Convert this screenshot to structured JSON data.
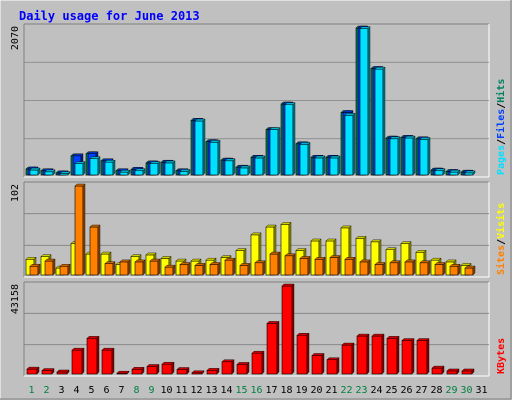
{
  "title": "Daily usage for June 2013",
  "colors": {
    "background": "#c0c0c0",
    "frame_dark": "#808080",
    "frame_light": "#ffffff",
    "title": "#0000ff",
    "axis_text": "#000000",
    "weekend": "#008040",
    "hits": "#00805c",
    "files": "#0040ff",
    "pages": "#00e0ff",
    "visits": "#ffff00",
    "sites": "#ff8000",
    "kbytes": "#ff0000",
    "gridline": "#808080"
  },
  "chart_data": [
    {
      "type": "bar",
      "panel": "top",
      "ymax_label": "2070",
      "ylim": [
        0,
        2070
      ],
      "legend": [
        {
          "name": "Hits",
          "color_key": "hits"
        },
        {
          "name": "Files",
          "color_key": "files"
        },
        {
          "name": "Pages",
          "color_key": "pages"
        }
      ],
      "series": [
        {
          "name": "Hits",
          "values": [
            85,
            60,
            30,
            270,
            300,
            200,
            60,
            80,
            170,
            180,
            60,
            770,
            470,
            210,
            110,
            250,
            640,
            1000,
            440,
            250,
            250,
            880,
            2070,
            1500,
            520,
            530,
            510,
            70,
            50,
            40
          ]
        },
        {
          "name": "Files",
          "values": [
            85,
            60,
            30,
            270,
            300,
            200,
            60,
            80,
            170,
            180,
            60,
            770,
            470,
            210,
            110,
            250,
            640,
            1000,
            440,
            250,
            250,
            880,
            2070,
            1500,
            520,
            530,
            510,
            70,
            50,
            40
          ]
        },
        {
          "name": "Pages",
          "values": [
            70,
            45,
            20,
            160,
            230,
            180,
            40,
            60,
            160,
            170,
            50,
            760,
            460,
            200,
            100,
            240,
            640,
            990,
            430,
            240,
            240,
            840,
            2060,
            1490,
            510,
            520,
            500,
            60,
            40,
            30
          ]
        }
      ]
    },
    {
      "type": "bar",
      "panel": "middle",
      "ymax_label": "102",
      "ylim": [
        0,
        102
      ],
      "legend": [
        {
          "name": "Visits",
          "color_key": "visits"
        },
        {
          "name": "Sites",
          "color_key": "sites"
        }
      ],
      "series": [
        {
          "name": "Visits",
          "values": [
            18,
            21,
            8,
            36,
            24,
            24,
            12,
            21,
            23,
            19,
            16,
            16,
            17,
            20,
            28,
            46,
            55,
            58,
            28,
            39,
            39,
            54,
            42,
            38,
            29,
            36,
            26,
            17,
            15,
            11
          ]
        },
        {
          "name": "Sites",
          "values": [
            10,
            16,
            10,
            102,
            55,
            13,
            15,
            15,
            16,
            9,
            12,
            11,
            12,
            17,
            11,
            14,
            24,
            22,
            19,
            18,
            20,
            18,
            15,
            12,
            14,
            15,
            14,
            12,
            10,
            8
          ]
        }
      ]
    },
    {
      "type": "bar",
      "panel": "bottom",
      "ymax_label": "43158",
      "ylim": [
        0,
        43158
      ],
      "legend": [
        {
          "name": "KBytes",
          "color_key": "kbytes"
        }
      ],
      "series": [
        {
          "name": "KBytes",
          "values": [
            2400,
            1700,
            1000,
            11700,
            17500,
            11700,
            400,
            2300,
            3700,
            4800,
            2200,
            600,
            1800,
            6000,
            4700,
            10200,
            24800,
            43158,
            19000,
            9100,
            7000,
            14200,
            18600,
            18600,
            17500,
            16400,
            16400,
            2900,
            1500,
            1500
          ]
        }
      ]
    }
  ],
  "x_days": [
    "1",
    "2",
    "3",
    "4",
    "5",
    "6",
    "7",
    "8",
    "9",
    "10",
    "11",
    "12",
    "13",
    "14",
    "15",
    "16",
    "17",
    "18",
    "19",
    "20",
    "21",
    "22",
    "23",
    "24",
    "25",
    "26",
    "27",
    "28",
    "29",
    "30",
    "31"
  ],
  "weekend_days": [
    "1",
    "2",
    "8",
    "9",
    "15",
    "16",
    "22",
    "23",
    "29",
    "30"
  ]
}
